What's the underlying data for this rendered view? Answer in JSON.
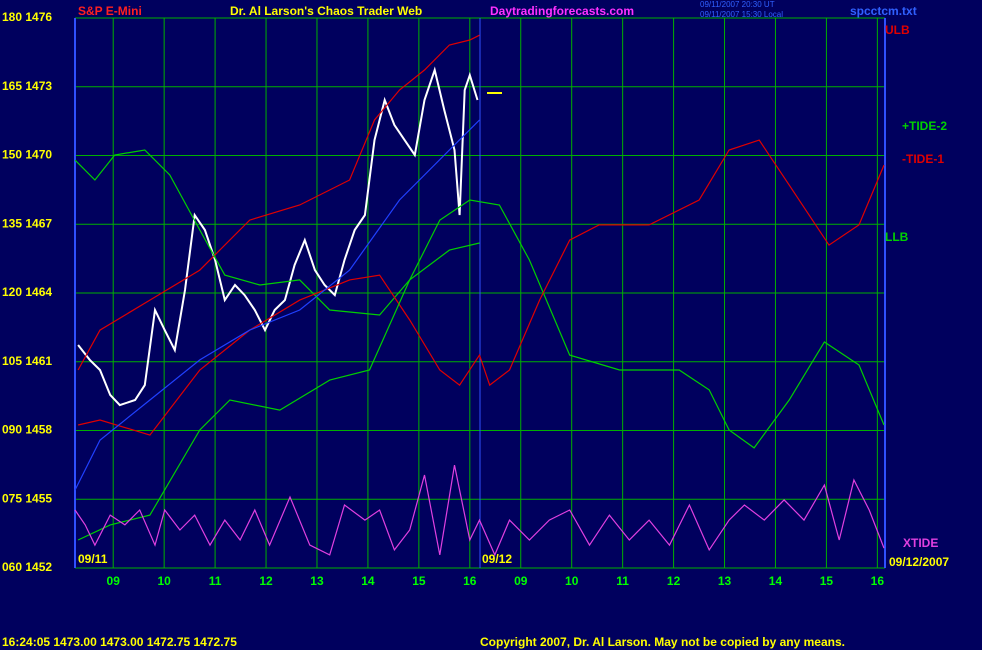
{
  "chart_data": {
    "type": "line",
    "title": "Dr. Al Larson's Chaos Trader Web",
    "site": "Daytradingforecasts.com",
    "stamp_ut": "09/11/2007 20:30 UT",
    "stamp_local": "09/11/2007 15:30 Local",
    "file": "spcctcm.txt",
    "date_start": "09/11",
    "date_mid": "09/12",
    "date_end": "09/12/2007",
    "status": "16:24:05  1473.00  1473.00  1472.75  1472.75",
    "copyright": "Copyright 2007, Dr. Al Larson. May not be copied by any means.",
    "grid": true,
    "grid_color": "#00b000",
    "xlim": [
      0,
      15.9
    ],
    "ylim": [
      1452,
      1476
    ],
    "xticks": [
      {
        "value": 0.75,
        "label": "09"
      },
      {
        "value": 1.75,
        "label": "10"
      },
      {
        "value": 2.75,
        "label": "11"
      },
      {
        "value": 3.75,
        "label": "12"
      },
      {
        "value": 4.75,
        "label": "13"
      },
      {
        "value": 5.75,
        "label": "14"
      },
      {
        "value": 6.75,
        "label": "15"
      },
      {
        "value": 7.75,
        "label": "16"
      },
      {
        "value": 8.75,
        "label": "09"
      },
      {
        "value": 9.75,
        "label": "10"
      },
      {
        "value": 10.75,
        "label": "11"
      },
      {
        "value": 11.75,
        "label": "12"
      },
      {
        "value": 12.75,
        "label": "13"
      },
      {
        "value": 13.75,
        "label": "14"
      },
      {
        "value": 14.75,
        "label": "15"
      },
      {
        "value": 15.75,
        "label": "16"
      }
    ],
    "yticks": [
      {
        "value": 1476,
        "label": "180 1476"
      },
      {
        "value": 1473,
        "label": "165 1473"
      },
      {
        "value": 1470,
        "label": "150 1470"
      },
      {
        "value": 1467,
        "label": "135 1467"
      },
      {
        "value": 1464,
        "label": "120 1464"
      },
      {
        "value": 1461,
        "label": "105 1461"
      },
      {
        "value": 1458,
        "label": "090 1458"
      },
      {
        "value": 1455,
        "label": "075 1455"
      },
      {
        "value": 1452,
        "label": "060 1452"
      }
    ],
    "series": [
      {
        "name": "S&P E-Mini",
        "color": "#ffffff",
        "x": [
          0.06,
          0.29,
          0.49,
          0.69,
          0.88,
          1.18,
          1.37,
          1.57,
          1.76,
          1.96,
          2.16,
          2.35,
          2.55,
          2.75,
          2.94,
          3.14,
          3.33,
          3.53,
          3.73,
          3.92,
          4.12,
          4.31,
          4.51,
          4.71,
          4.9,
          5.1,
          5.29,
          5.49,
          5.69,
          5.88,
          6.08,
          6.27,
          6.47,
          6.67,
          6.86,
          7.06,
          7.25,
          7.45,
          7.55,
          7.65,
          7.75,
          7.9
        ],
        "values": [
          1461.73,
          1461.08,
          1460.64,
          1459.55,
          1459.11,
          1459.33,
          1459.98,
          1463.26,
          1462.38,
          1461.51,
          1464.13,
          1467.4,
          1466.75,
          1465.44,
          1463.69,
          1464.35,
          1463.91,
          1463.26,
          1462.38,
          1463.26,
          1463.69,
          1465.22,
          1466.31,
          1465.0,
          1464.35,
          1463.91,
          1465.44,
          1466.75,
          1467.4,
          1470.67,
          1472.42,
          1471.33,
          1470.67,
          1470.02,
          1472.42,
          1473.73,
          1471.98,
          1470.24,
          1467.4,
          1472.86,
          1473.51,
          1472.42
        ]
      },
      {
        "name": "ULB",
        "color": "#e00000",
        "x": [
          0.06,
          0.49,
          1.47,
          2.45,
          3.43,
          4.41,
          5.39,
          5.88,
          6.37,
          6.86,
          7.35,
          7.75,
          7.94
        ],
        "values": [
          1460.64,
          1462.38,
          1463.69,
          1465.0,
          1467.18,
          1467.84,
          1468.93,
          1471.55,
          1472.86,
          1473.73,
          1474.82,
          1475.04,
          1475.25
        ]
      },
      {
        "name": "+TIDE-2",
        "color": "#00d000",
        "x": [
          0,
          0.39,
          0.78,
          1.37,
          1.86,
          2.45,
          2.94,
          3.63,
          4.41,
          5.0,
          5.98,
          6.57,
          7.16,
          7.75,
          8.33,
          8.92,
          9.71,
          10.69,
          11.86,
          12.45,
          12.84,
          13.33,
          14.02,
          14.71,
          15.39,
          15.88
        ],
        "values": [
          1469.8,
          1468.93,
          1470.02,
          1470.24,
          1469.15,
          1466.75,
          1464.78,
          1464.35,
          1464.57,
          1463.26,
          1463.04,
          1464.57,
          1467.18,
          1468.06,
          1467.84,
          1465.44,
          1461.29,
          1460.64,
          1460.64,
          1459.77,
          1458.02,
          1457.24,
          1459.33,
          1461.86,
          1460.86,
          1458.24
        ]
      },
      {
        "name": "-TIDE-1",
        "color": "#e00000",
        "x": [
          0.06,
          0.49,
          1.47,
          2.45,
          3.43,
          4.41,
          5.39,
          5.98,
          6.57,
          7.16,
          7.55,
          7.94,
          8.14,
          8.53,
          9.12,
          9.71,
          10.29,
          11.27,
          12.25,
          12.84,
          13.43,
          14.02,
          14.8,
          15.39,
          15.88
        ],
        "values": [
          1458.24,
          1458.46,
          1457.8,
          1460.64,
          1462.38,
          1463.69,
          1464.57,
          1464.78,
          1462.82,
          1460.64,
          1459.98,
          1461.29,
          1459.98,
          1460.64,
          1463.69,
          1466.31,
          1466.97,
          1466.97,
          1468.06,
          1470.24,
          1470.67,
          1468.71,
          1466.09,
          1466.97,
          1469.58
        ]
      },
      {
        "name": "LLB",
        "color": "#00d000",
        "x": [
          0.06,
          0.69,
          1.47,
          2.45,
          3.04,
          4.02,
          5.0,
          5.78,
          6.57,
          7.35,
          7.94
        ],
        "values": [
          1453.22,
          1453.88,
          1454.31,
          1458.02,
          1459.33,
          1458.89,
          1460.2,
          1460.64,
          1464.57,
          1465.87,
          1466.18
        ]
      },
      {
        "name": "XTIDE",
        "color": "#e040e0",
        "x": [
          0,
          0.2,
          0.39,
          0.69,
          0.98,
          1.27,
          1.57,
          1.76,
          2.06,
          2.35,
          2.65,
          2.94,
          3.24,
          3.53,
          3.82,
          4.22,
          4.61,
          5.0,
          5.29,
          5.69,
          5.98,
          6.27,
          6.57,
          6.86,
          7.16,
          7.45,
          7.75,
          7.94,
          8.24,
          8.53,
          8.92,
          9.31,
          9.71,
          10.1,
          10.49,
          10.88,
          11.27,
          11.67,
          12.06,
          12.45,
          12.84,
          13.14,
          13.53,
          13.92,
          14.31,
          14.71,
          15.0,
          15.29,
          15.59,
          15.88
        ],
        "values": [
          1454.53,
          1453.88,
          1453.0,
          1454.31,
          1453.88,
          1454.53,
          1453.0,
          1454.53,
          1453.66,
          1454.31,
          1453.0,
          1454.09,
          1453.22,
          1454.53,
          1453.0,
          1455.1,
          1453.0,
          1452.57,
          1454.75,
          1454.09,
          1454.53,
          1452.79,
          1453.66,
          1456.06,
          1452.57,
          1456.49,
          1453.22,
          1454.09,
          1452.57,
          1454.09,
          1453.22,
          1454.09,
          1454.53,
          1453.0,
          1454.31,
          1453.22,
          1454.09,
          1453.0,
          1454.75,
          1452.79,
          1454.09,
          1454.75,
          1454.09,
          1454.97,
          1454.09,
          1455.62,
          1453.22,
          1455.84,
          1454.53,
          1452.87
        ]
      },
      {
        "color": "#2040ff",
        "x": [
          0,
          0.49,
          1.47,
          2.45,
          3.43,
          4.41,
          5.39,
          6.37,
          7.35,
          7.94
        ],
        "values": [
          1455.4,
          1457.58,
          1459.33,
          1461.08,
          1462.38,
          1463.26,
          1465.0,
          1468.06,
          1470.24,
          1471.55
        ]
      }
    ]
  }
}
